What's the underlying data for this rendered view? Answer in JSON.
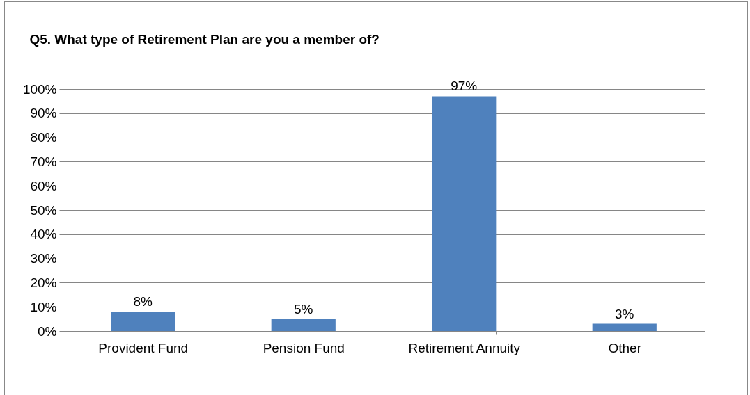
{
  "chart_data": {
    "type": "bar",
    "title": "Q5. What type of Retirement Plan are you a member of?",
    "categories": [
      "Provident Fund",
      "Pension Fund",
      "Retirement Annuity",
      "Other"
    ],
    "values": [
      8,
      5,
      97,
      3
    ],
    "value_labels": [
      "8%",
      "5%",
      "97%",
      "3%"
    ],
    "color": "#4f81bd",
    "ylim": [
      0,
      100
    ],
    "yticks": [
      {
        "value": 0,
        "label": "0%"
      },
      {
        "value": 10,
        "label": "10%"
      },
      {
        "value": 20,
        "label": "20%"
      },
      {
        "value": 30,
        "label": "30%"
      },
      {
        "value": 40,
        "label": "40%"
      },
      {
        "value": 50,
        "label": "50%"
      },
      {
        "value": 60,
        "label": "60%"
      },
      {
        "value": 70,
        "label": "70%"
      },
      {
        "value": 80,
        "label": "80%"
      },
      {
        "value": 90,
        "label": "90%"
      },
      {
        "value": 100,
        "label": "100%"
      }
    ],
    "grid": "y"
  }
}
